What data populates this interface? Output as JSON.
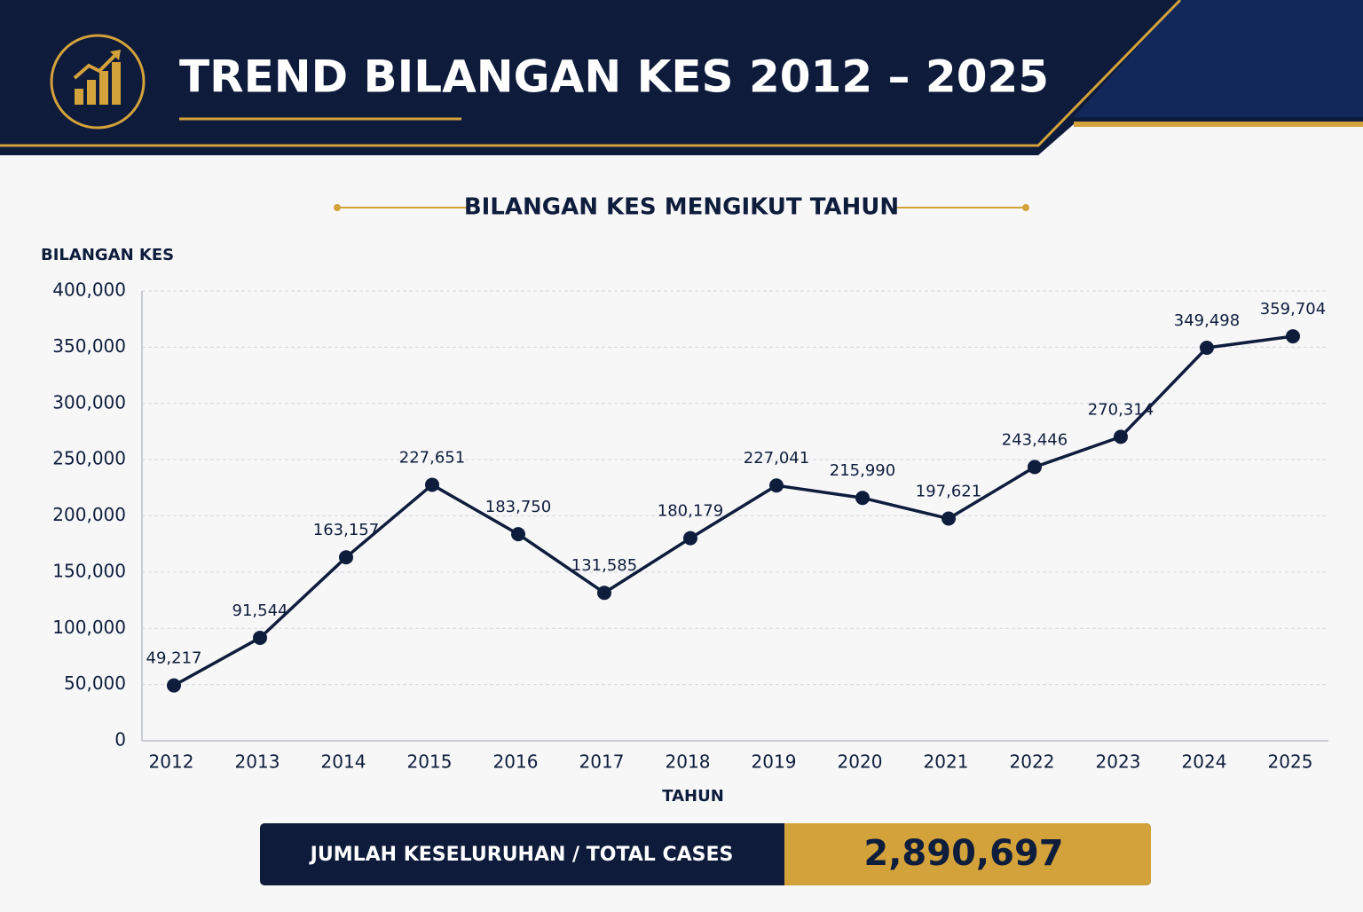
{
  "header": {
    "title": "TREND BILANGAN KES 2012 – 2025"
  },
  "chart_data": {
    "type": "line",
    "title": "BILANGAN KES MENGIKUT TAHUN",
    "y_label": "BILANGAN KES",
    "x_label": "TAHUN",
    "categories": [
      "2012",
      "2013",
      "2014",
      "2015",
      "2016",
      "2017",
      "2018",
      "2019",
      "2020",
      "2021",
      "2022",
      "2023",
      "2024",
      "2025"
    ],
    "series": [
      {
        "name": "Bilangan Kes",
        "color": "#0f1d3d",
        "values": [
          49217,
          91544,
          163157,
          227651,
          183750,
          131585,
          180179,
          227041,
          215990,
          197621,
          243446,
          270314,
          349498,
          359704
        ],
        "value_labels": [
          "49,217",
          "91,544",
          "163,157",
          "227,651",
          "183,750",
          "131,585",
          "180,179",
          "227,041",
          "215,990",
          "197,621",
          "243,446",
          "270,314",
          "349,498",
          "359,704"
        ]
      }
    ],
    "ylim": [
      0,
      400000
    ],
    "yticks": [
      0,
      {
        "value": 50000,
        "label": "50,000"
      },
      {
        "value": 100000,
        "label": "100,000"
      },
      {
        "value": 150000,
        "label": "150,000"
      },
      {
        "value": 200000,
        "label": "200,000"
      },
      {
        "value": 250000,
        "label": "250,000"
      },
      {
        "value": 300000,
        "label": "300,000"
      },
      {
        "value": 350000,
        "label": "350,000"
      },
      {
        "value": 400000,
        "label": "400,000"
      }
    ],
    "grid": true
  },
  "summary": {
    "label": "JUMLAH KESELURUHAN / TOTAL CASES",
    "value": "2,890,697"
  }
}
